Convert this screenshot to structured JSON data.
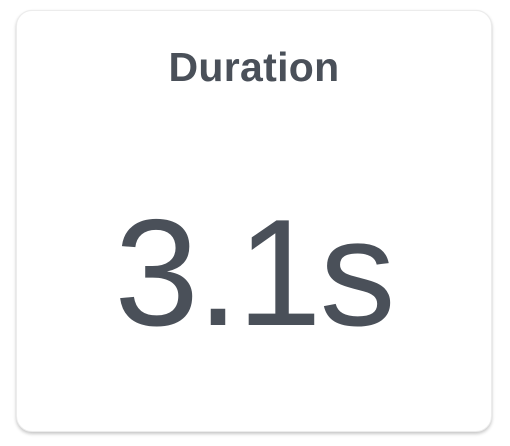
{
  "card": {
    "title": "Duration",
    "value": "3.1s"
  },
  "colors": {
    "text": "#4a5059",
    "card_background": "#ffffff"
  }
}
